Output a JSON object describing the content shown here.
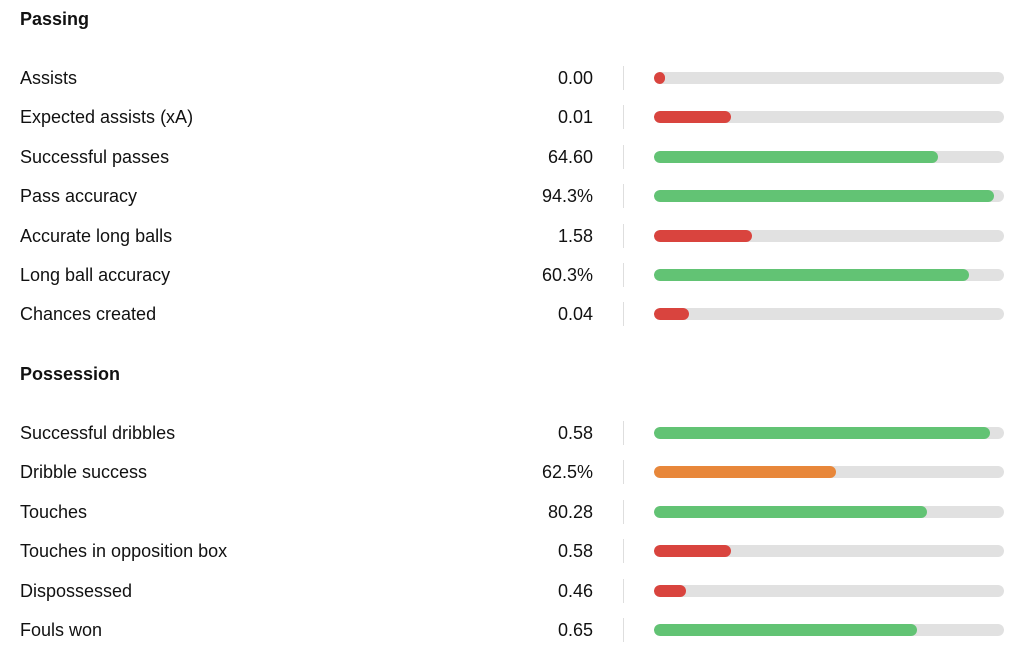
{
  "colors": {
    "good": "#62c374",
    "average": "#e8873a",
    "poor": "#d9443e",
    "track": "#e1e1e1"
  },
  "sections": [
    {
      "title": "Passing",
      "stats": [
        {
          "label": "Assists",
          "value": "0.00",
          "fill": 0.03,
          "rating": "poor"
        },
        {
          "label": "Expected assists (xA)",
          "value": "0.01",
          "fill": 0.22,
          "rating": "poor"
        },
        {
          "label": "Successful passes",
          "value": "64.60",
          "fill": 0.81,
          "rating": "good"
        },
        {
          "label": "Pass accuracy",
          "value": "94.3%",
          "fill": 0.97,
          "rating": "good"
        },
        {
          "label": "Accurate long balls",
          "value": "1.58",
          "fill": 0.28,
          "rating": "poor"
        },
        {
          "label": "Long ball accuracy",
          "value": "60.3%",
          "fill": 0.9,
          "rating": "good"
        },
        {
          "label": "Chances created",
          "value": "0.04",
          "fill": 0.1,
          "rating": "poor"
        }
      ]
    },
    {
      "title": "Possession",
      "stats": [
        {
          "label": "Successful dribbles",
          "value": "0.58",
          "fill": 0.96,
          "rating": "good"
        },
        {
          "label": "Dribble success",
          "value": "62.5%",
          "fill": 0.52,
          "rating": "average"
        },
        {
          "label": "Touches",
          "value": "80.28",
          "fill": 0.78,
          "rating": "good"
        },
        {
          "label": "Touches in opposition box",
          "value": "0.58",
          "fill": 0.22,
          "rating": "poor"
        },
        {
          "label": "Dispossessed",
          "value": "0.46",
          "fill": 0.09,
          "rating": "poor"
        },
        {
          "label": "Fouls won",
          "value": "0.65",
          "fill": 0.75,
          "rating": "good"
        }
      ]
    }
  ]
}
